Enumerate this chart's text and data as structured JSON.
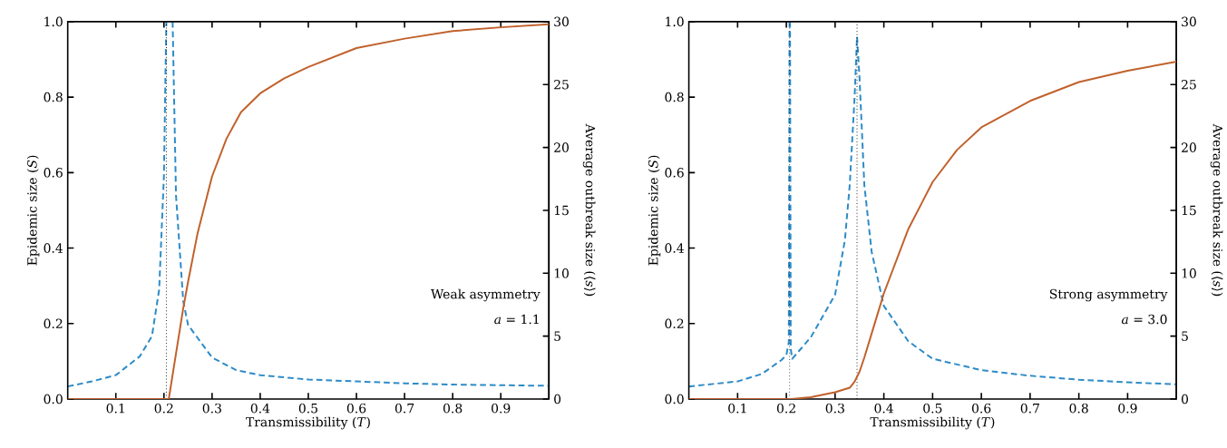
{
  "chart_data": [
    {
      "type": "line",
      "xlabel": "Transmissibility (*T*)",
      "ylabel": "Epidemic size (*S*)",
      "y2label": "Average outbreak size (⟨*s*⟩)",
      "xlim": [
        0,
        1
      ],
      "xticks": [
        0.1,
        0.2,
        0.3,
        0.4,
        0.5,
        0.6,
        0.7,
        0.8,
        0.9
      ],
      "ylim": [
        0,
        1
      ],
      "yticks": [
        {
          "value": 0,
          "label": "0.0"
        },
        {
          "value": 0.2,
          "label": "0.2"
        },
        {
          "value": 0.4,
          "label": "0.4"
        },
        {
          "value": 0.6,
          "label": "0.6"
        },
        {
          "value": 0.8,
          "label": "0.8"
        },
        {
          "value": 1,
          "label": "1.0"
        }
      ],
      "y2lim": [
        0,
        30
      ],
      "y2ticks": [
        0,
        5,
        10,
        15,
        20,
        25,
        30
      ],
      "series": [
        {
          "color": "#2d8bc7",
          "axis": "y2",
          "line_style": "dashed",
          "x": [
            0,
            0.05,
            0.1,
            0.15,
            0.175,
            0.19,
            0.2,
            0.203,
            0.205,
            0.212,
            0.218,
            0.225,
            0.24,
            0.25,
            0.3,
            0.35,
            0.4,
            0.5,
            0.6,
            0.7,
            0.8,
            0.9,
            1.0
          ],
          "values": [
            1.0,
            1.4,
            1.9,
            3.4,
            5.0,
            8.7,
            17.8,
            25.5,
            30,
            null,
            30,
            16.2,
            7.8,
            5.9,
            3.3,
            2.3,
            1.9,
            1.55,
            1.4,
            1.25,
            1.15,
            1.1,
            1.05
          ]
        },
        {
          "color": "#c1612c",
          "line_style": "solid",
          "x": [
            0,
            0.1,
            0.2,
            0.21,
            0.22,
            0.23,
            0.24,
            0.25,
            0.27,
            0.3,
            0.33,
            0.36,
            0.4,
            0.45,
            0.5,
            0.6,
            0.7,
            0.8,
            0.9,
            1.0
          ],
          "values": [
            0,
            0,
            0,
            0,
            0.08,
            0.16,
            0.24,
            0.31,
            0.44,
            0.59,
            0.69,
            0.76,
            0.81,
            0.85,
            0.88,
            0.93,
            0.955,
            0.975,
            0.985,
            0.993
          ]
        }
      ],
      "ref_lines": [
        {
          "axis": "x",
          "value": 0.205,
          "color": "#000000",
          "line_style": "dotted"
        }
      ],
      "annotations": [
        "Weak asymmetry",
        "*a* = 1.1"
      ]
    },
    {
      "type": "line",
      "xlabel": "Transmissibility (*T*)",
      "ylabel": "Epidemic size (*S*)",
      "y2label": "Average outbreak size (⟨*s*⟩)",
      "xlim": [
        0,
        1
      ],
      "xticks": [
        0.1,
        0.2,
        0.3,
        0.4,
        0.5,
        0.6,
        0.7,
        0.8,
        0.9
      ],
      "ylim": [
        0,
        1
      ],
      "yticks": [
        {
          "value": 0,
          "label": "0.0"
        },
        {
          "value": 0.2,
          "label": "0.2"
        },
        {
          "value": 0.4,
          "label": "0.4"
        },
        {
          "value": 0.6,
          "label": "0.6"
        },
        {
          "value": 0.8,
          "label": "0.8"
        },
        {
          "value": 1,
          "label": "1.0"
        }
      ],
      "y2lim": [
        0,
        30
      ],
      "y2ticks": [
        0,
        5,
        10,
        15,
        20,
        25,
        30
      ],
      "series": [
        {
          "color": "#2d8bc7",
          "axis": "y2",
          "line_style": "dashed",
          "x": [
            0,
            0.05,
            0.1,
            0.15,
            0.19,
            0.2,
            0.205,
            0.2065,
            null,
            0.2075,
            0.209,
            0.212,
            0.25,
            0.3,
            0.32,
            0.33,
            0.34,
            0.345,
            0.35,
            0.36,
            0.375,
            0.4,
            0.45,
            0.5,
            0.6,
            0.7,
            0.8,
            0.9,
            1.0
          ],
          "values": [
            1.0,
            1.2,
            1.4,
            2.0,
            3.1,
            3.5,
            4.5,
            30,
            null,
            30,
            4.0,
            3.2,
            4.9,
            8.3,
            12.6,
            17,
            24,
            28.8,
            25.6,
            17,
            11.7,
            7.4,
            4.6,
            3.2,
            2.3,
            1.85,
            1.54,
            1.33,
            1.17
          ]
        },
        {
          "color": "#c1612c",
          "line_style": "solid",
          "x": [
            0,
            0.1,
            0.2,
            0.21,
            0.25,
            0.3,
            0.33,
            0.34,
            0.35,
            0.36,
            0.38,
            0.4,
            0.45,
            0.5,
            0.55,
            0.6,
            0.7,
            0.8,
            0.9,
            1.0
          ],
          "values": [
            0,
            0,
            0,
            0,
            0.005,
            0.018,
            0.03,
            0.046,
            0.072,
            0.11,
            0.195,
            0.28,
            0.45,
            0.575,
            0.66,
            0.72,
            0.79,
            0.84,
            0.87,
            0.894
          ]
        }
      ],
      "ref_lines": [
        {
          "axis": "x",
          "value": 0.207,
          "color": "#000000",
          "line_style": "dotted"
        },
        {
          "axis": "x",
          "value": 0.345,
          "color": "#000000",
          "line_style": "dotted"
        }
      ],
      "annotations": [
        "Strong asymmetry",
        "*a* = 3.0"
      ]
    }
  ]
}
